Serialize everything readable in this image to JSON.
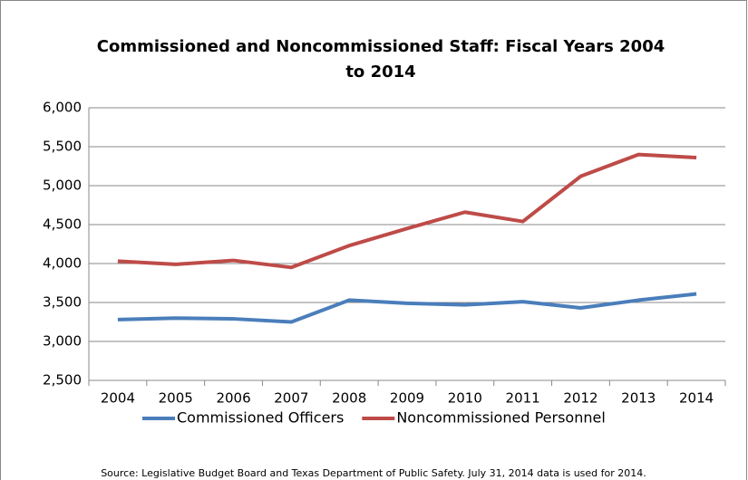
{
  "chart_data": {
    "type": "line",
    "title": "Commissioned and Noncommissioned Staff:  Fiscal Years 2004 to 2014",
    "categories": [
      "2004",
      "2005",
      "2006",
      "2007",
      "2008",
      "2009",
      "2010",
      "2011",
      "2012",
      "2013",
      "2014"
    ],
    "series": [
      {
        "name": "Commissioned Officers",
        "color": "#4a7ebb",
        "values": [
          3280,
          3300,
          3290,
          3250,
          3530,
          3490,
          3470,
          3510,
          3430,
          3530,
          3610
        ]
      },
      {
        "name": "Noncommissioned Personnel",
        "color": "#be4b48",
        "values": [
          4030,
          3990,
          4040,
          3950,
          4230,
          4450,
          4660,
          4540,
          5120,
          5400,
          5360
        ]
      }
    ],
    "ylim": [
      2500,
      6000
    ],
    "yticks": [
      {
        "value": 2500,
        "label": "2,500"
      },
      {
        "value": 3000,
        "label": "3,000"
      },
      {
        "value": 3500,
        "label": "3,500"
      },
      {
        "value": 4000,
        "label": "4,000"
      },
      {
        "value": 4500,
        "label": "4,500"
      },
      {
        "value": 5000,
        "label": "5,000"
      },
      {
        "value": 5500,
        "label": "5,500"
      },
      {
        "value": 6000,
        "label": "6,000"
      }
    ],
    "grid": true,
    "legend": "bottom",
    "source": "Source:  Legislative Budget Board and Texas Department of Public Safety. July 31, 2014 data is used for 2014."
  }
}
